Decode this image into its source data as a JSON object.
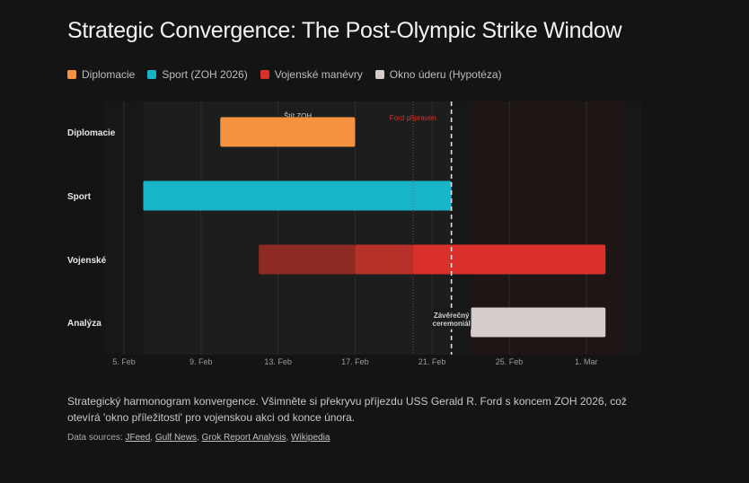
{
  "title": "Strategic Convergence: The Post-Olympic Strike Window",
  "legend": [
    {
      "label": "Diplomacie",
      "color": "#f4923f"
    },
    {
      "label": "Sport (ZOH 2026)",
      "color": "#18b4c8"
    },
    {
      "label": "Vojenské manévry",
      "color": "#d9302a"
    },
    {
      "label": "Okno úderu (Hypotéza)",
      "color": "#d6cccc"
    }
  ],
  "chart_data": {
    "type": "gantt",
    "xaxis": {
      "unit": "day of February 2026",
      "range": [
        4,
        32
      ],
      "ticks": [
        {
          "day": 5,
          "label": "5. Feb"
        },
        {
          "day": 9,
          "label": "9. Feb"
        },
        {
          "day": 13,
          "label": "13. Feb"
        },
        {
          "day": 17,
          "label": "17. Feb"
        },
        {
          "day": 21,
          "label": "21. Feb"
        },
        {
          "day": 25,
          "label": "25. Feb"
        },
        {
          "day": 29,
          "label": "1. Mar"
        }
      ]
    },
    "rows": [
      "Diplomacie",
      "Sport",
      "Vojenské",
      "Analýza"
    ],
    "bars": [
      {
        "row": "Diplomacie",
        "start": 10,
        "end": 17,
        "color": "#f4923f"
      },
      {
        "row": "Sport",
        "start": 6,
        "end": 22,
        "color": "#18b4c8"
      },
      {
        "row": "Vojenské",
        "start": 12,
        "end": 17,
        "color": "#8e2a24"
      },
      {
        "row": "Vojenské",
        "start": 17,
        "end": 20,
        "color": "#b8302a"
      },
      {
        "row": "Vojenské",
        "start": 20,
        "end": 30,
        "color": "#d9302a"
      },
      {
        "row": "Analýza",
        "start": 23,
        "end": 30,
        "color": "#d6cccc"
      }
    ],
    "shaded_regions": [
      {
        "start": 6,
        "end": 22,
        "color": "#1c1d1d"
      },
      {
        "start": 23,
        "end": 31,
        "color": "#1e1515"
      }
    ],
    "markers": [
      {
        "day": 20,
        "label": "Ford připraven",
        "style": "dotted",
        "color": "#d9302a"
      },
      {
        "day": 22,
        "label": "Závěrečný ceremoniál",
        "style": "dashed",
        "color": "#e0e0e0"
      }
    ],
    "annotations": [
      {
        "day": 13,
        "row": "Diplomacie",
        "label": "Štít ZOH"
      }
    ]
  },
  "caption": "Strategický harmonogram konvergence. Všimněte si překryvu příjezdu USS Gerald R. Ford s koncem ZOH 2026, což otevírá 'okno příležitosti' pro vojenskou akci od konce února.",
  "sources": {
    "prefix": "Data sources:",
    "links": [
      "JFeed",
      "Gulf News",
      "Grok Report Analysis",
      "Wikipedia"
    ]
  }
}
